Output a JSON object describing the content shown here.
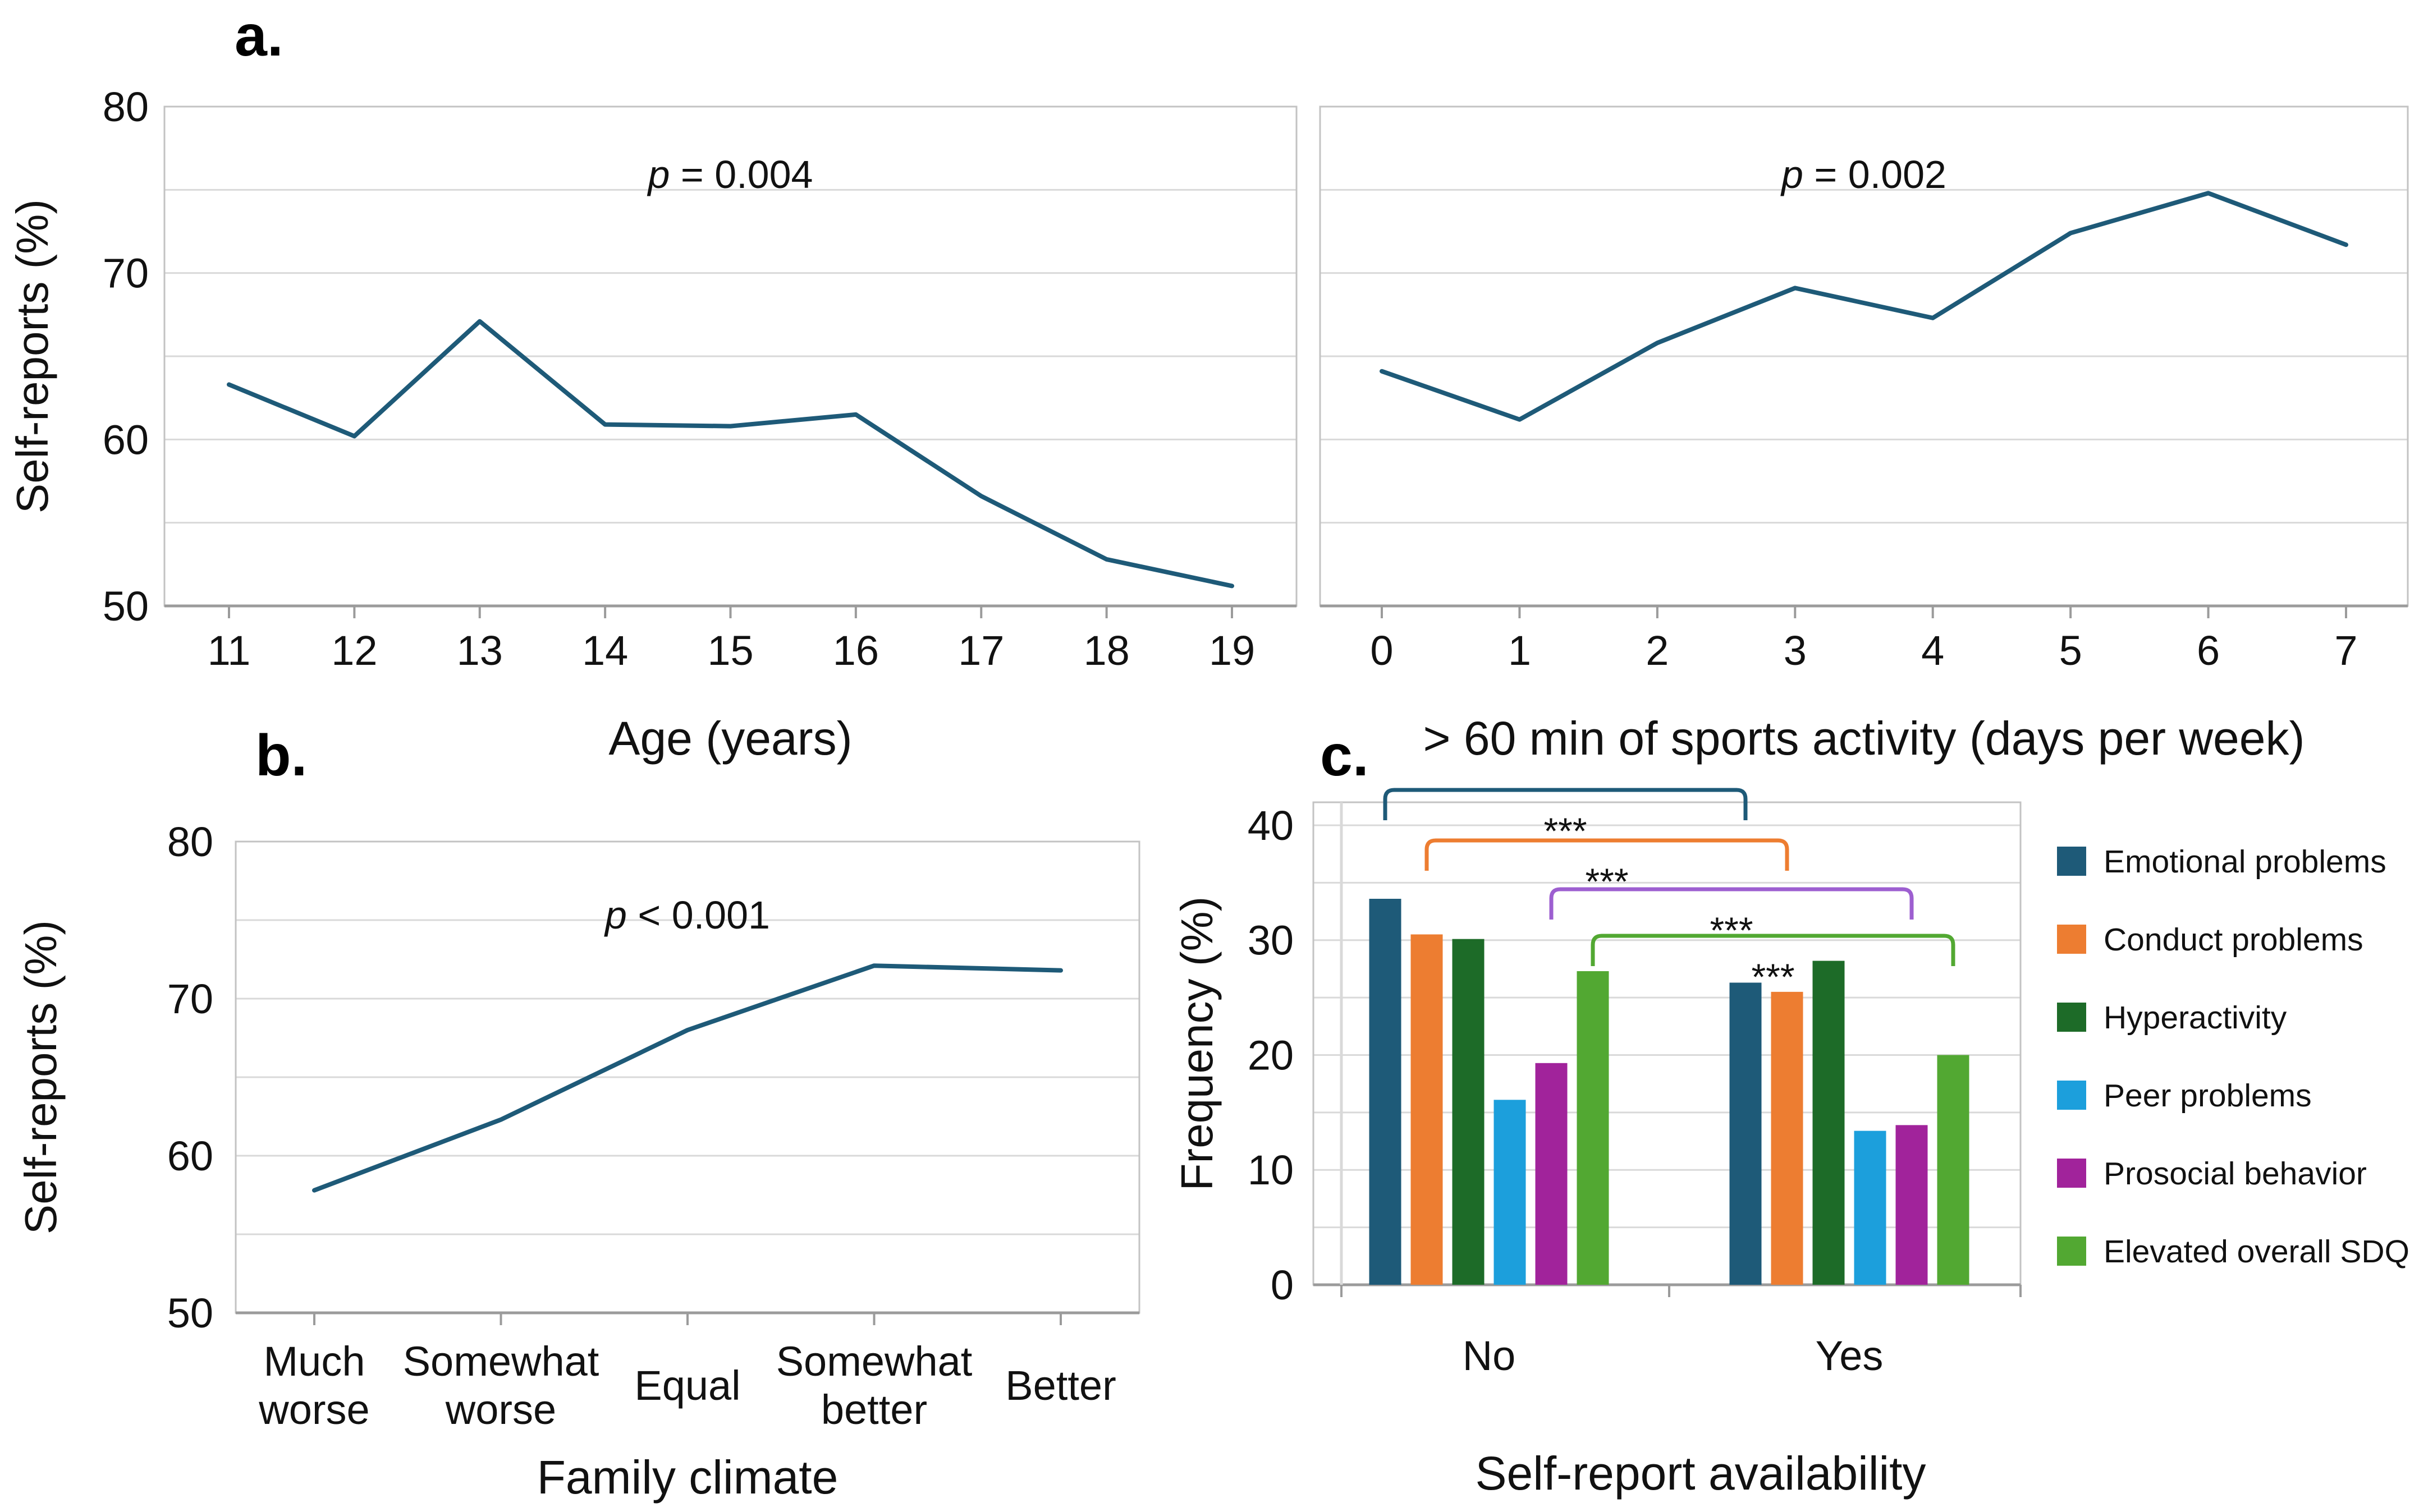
{
  "panels": {
    "a": {
      "label": "a."
    },
    "b": {
      "label": "b."
    },
    "c": {
      "label": "c."
    }
  },
  "chart_data": [
    {
      "id": "age",
      "panel": "a",
      "type": "line",
      "title": "p = 0.004",
      "categories": [
        "11",
        "12",
        "13",
        "14",
        "15",
        "16",
        "17",
        "18",
        "19"
      ],
      "values": [
        63.3,
        60.2,
        67.1,
        60.9,
        60.8,
        61.5,
        56.6,
        52.8,
        51.2
      ],
      "xlabel": "Age (years)",
      "ylabel": "Self-reports (%)",
      "ylim": [
        50,
        80
      ],
      "ytick_labels": [
        50,
        60,
        70,
        80
      ],
      "grid_step": 5,
      "grid_on": true,
      "line_color": "#1e5a78"
    },
    {
      "id": "sports",
      "panel": "a",
      "type": "line",
      "title": "p = 0.002",
      "categories": [
        "0",
        "1",
        "2",
        "3",
        "4",
        "5",
        "6",
        "7"
      ],
      "values": [
        64.1,
        61.2,
        65.8,
        69.1,
        67.3,
        72.4,
        74.8,
        71.7
      ],
      "xlabel": "> 60 min of sports activity (days per week)",
      "ylabel": "Self-reports (%)",
      "ylim": [
        50,
        80
      ],
      "ytick_labels": [
        50,
        60,
        70,
        80
      ],
      "grid_step": 5,
      "grid_on": true,
      "line_color": "#1e5a78"
    },
    {
      "id": "family",
      "panel": "b",
      "type": "line",
      "title": "p < 0.001",
      "categories": [
        [
          "Much",
          "worse"
        ],
        [
          "Somewhat",
          "worse"
        ],
        [
          "Equal"
        ],
        [
          "Somewhat",
          "better"
        ],
        [
          "Better"
        ]
      ],
      "values": [
        57.8,
        62.3,
        68.0,
        72.1,
        71.8
      ],
      "xlabel": "Family climate",
      "ylabel": "Self-reports (%)",
      "ylim": [
        50,
        80
      ],
      "ytick_labels": [
        50,
        60,
        70,
        80
      ],
      "grid_step": 5,
      "grid_on": true,
      "line_color": "#1e5a78"
    },
    {
      "id": "sdq",
      "panel": "c",
      "type": "bar",
      "categories": [
        "No",
        "Yes"
      ],
      "series": [
        {
          "name": "Emotional problems",
          "color": "#1e5a78",
          "values": [
            33.6,
            26.3
          ]
        },
        {
          "name": "Conduct problems",
          "color": "#ed7d31",
          "values": [
            30.5,
            25.5
          ]
        },
        {
          "name": "Hyperactivity",
          "color": "#1d6b28",
          "values": [
            30.1,
            28.2
          ]
        },
        {
          "name": "Peer problems",
          "color": "#1c9fdc",
          "values": [
            16.1,
            13.4
          ]
        },
        {
          "name": "Prosocial behavior",
          "color": "#a1239b",
          "values": [
            19.3,
            13.9
          ]
        },
        {
          "name": "Elevated overall SDQ",
          "color": "#52a832",
          "values": [
            27.3,
            20.0
          ]
        }
      ],
      "xlabel": "Self-report availability",
      "ylabel": "Frequency (%)",
      "ylim": [
        0,
        42
      ],
      "ytick_labels": [
        0,
        10,
        20,
        30,
        40
      ],
      "grid_step": 5,
      "grid_on": true,
      "legend_position": "right",
      "significance_brackets": [
        {
          "series": "Emotional problems",
          "label": "***",
          "color": "#1e5a78"
        },
        {
          "series": "Conduct problems",
          "label": "***",
          "color": "#ed7d31"
        },
        {
          "series": "Prosocial behavior",
          "label": "***",
          "color": "#9d5fd0"
        },
        {
          "series": "Elevated overall SDQ",
          "label": "***",
          "color": "#52a832"
        }
      ]
    }
  ]
}
